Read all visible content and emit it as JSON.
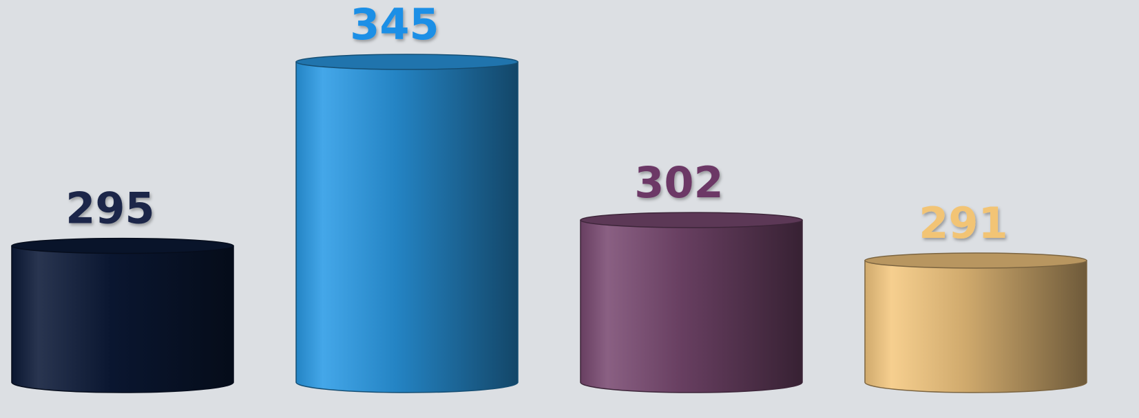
{
  "chart_data": {
    "type": "cylinder-bar",
    "values": [
      295,
      345,
      302,
      291
    ],
    "colors": [
      "#0c1a38",
      "#2a9be6",
      "#7a4a72",
      "#f5c880"
    ],
    "label_colors": [
      "#1a2748",
      "#1b8fe6",
      "#6c3866",
      "#f2c475"
    ]
  }
}
